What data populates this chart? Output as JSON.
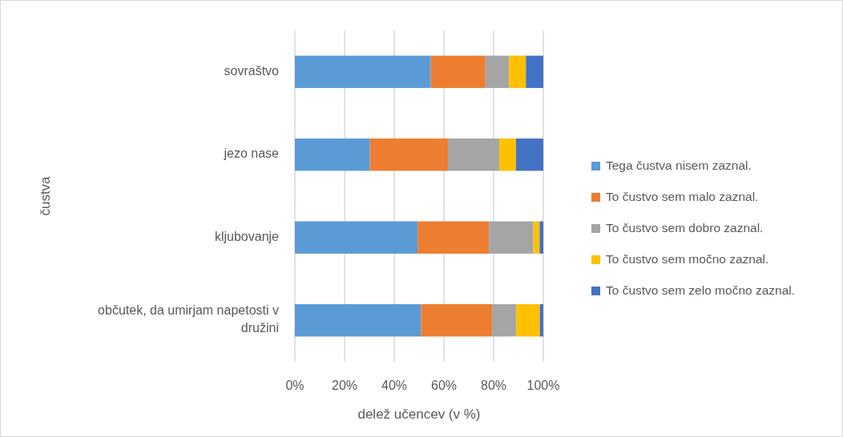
{
  "chart_data": {
    "type": "bar",
    "orientation": "horizontal",
    "stacked": true,
    "xlabel": "delež učencev (v %)",
    "ylabel": "čustva",
    "categories": [
      "sovraštvo",
      "jezo nase",
      "kljubovanje",
      "občutek, da umirjam napetosti v družini"
    ],
    "series": [
      {
        "name": "Tega čustva nisem zaznal.",
        "color": "#5b9bd5",
        "values": [
          54.7,
          30.2,
          49.4,
          50.8
        ]
      },
      {
        "name": "To čustvo sem malo zaznal.",
        "color": "#ed7d31",
        "values": [
          22.0,
          31.4,
          28.7,
          28.6
        ]
      },
      {
        "name": "To čustvo sem dobro zaznal.",
        "color": "#a5a5a5",
        "values": [
          9.5,
          20.7,
          17.9,
          9.7
        ]
      },
      {
        "name": "To čustvo sem močno zaznal.",
        "color": "#ffc000",
        "values": [
          6.8,
          6.7,
          2.5,
          9.5
        ]
      },
      {
        "name": "To čustvo sem zelo močno zaznal.",
        "color": "#4472c4",
        "values": [
          7.0,
          11.0,
          1.5,
          1.4
        ]
      }
    ],
    "xlim": [
      0,
      100
    ],
    "xticks": [
      {
        "value": 0,
        "label": "0%"
      },
      {
        "value": 20,
        "label": "20%"
      },
      {
        "value": 40,
        "label": "40%"
      },
      {
        "value": 60,
        "label": "60%"
      },
      {
        "value": 80,
        "label": "80%"
      },
      {
        "value": 100,
        "label": "100%"
      }
    ],
    "grid": "x",
    "legend": "right"
  }
}
